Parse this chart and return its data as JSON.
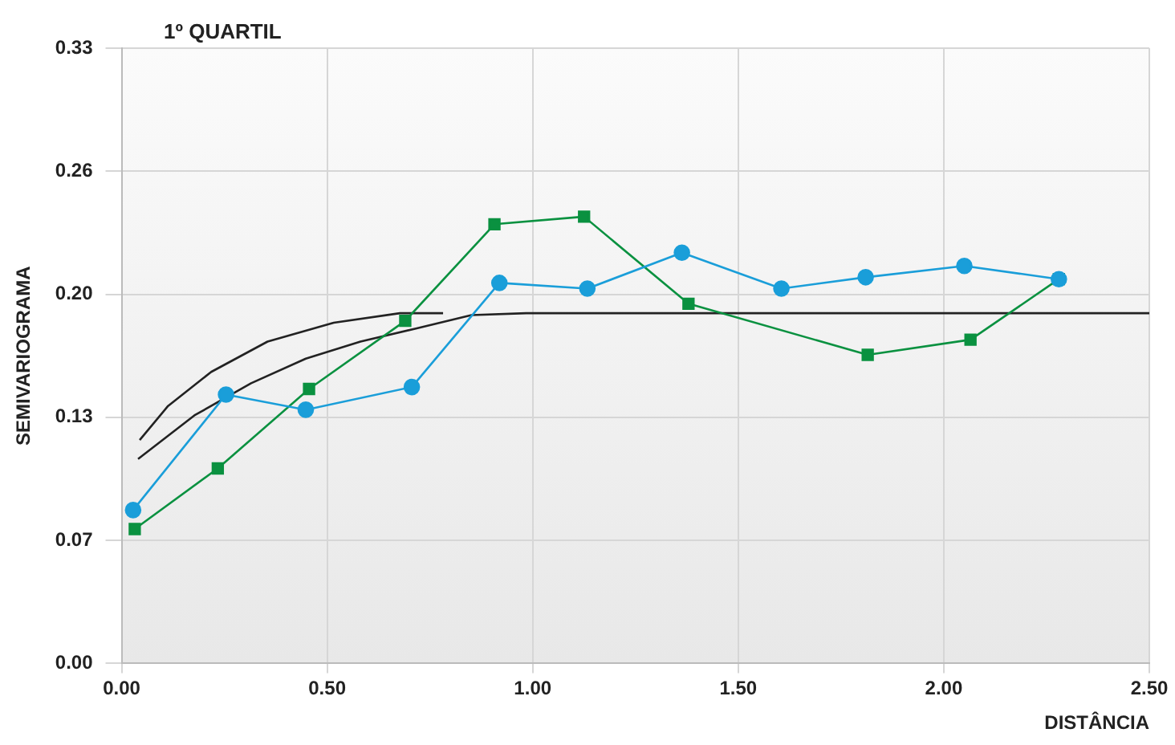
{
  "chart_data": {
    "type": "line",
    "title": "1º QUARTIL",
    "xlabel": "DISTÂNCIA",
    "ylabel": "SEMIVARIOGRAMA",
    "xlim": [
      0,
      2.5
    ],
    "xticks": [
      {
        "value": 0,
        "label": "0.00"
      },
      {
        "value": 0.5,
        "label": "0.50"
      },
      {
        "value": 1,
        "label": "1.00"
      },
      {
        "value": 1.5,
        "label": "1.50"
      },
      {
        "value": 2,
        "label": "2.00"
      },
      {
        "value": 2.5,
        "label": "2.50"
      }
    ],
    "ylim": [
      0,
      0.325
    ],
    "yticks": [
      {
        "value": 0,
        "label": "0.00"
      },
      {
        "value": 0.065,
        "label": "0.07"
      },
      {
        "value": 0.13,
        "label": "0.13"
      },
      {
        "value": 0.195,
        "label": "0.20"
      },
      {
        "value": 0.26,
        "label": "0.26"
      },
      {
        "value": 0.325,
        "label": "0.33"
      }
    ],
    "grid": true,
    "legend": false,
    "line_style": "solid",
    "series": [
      {
        "color": "#1a9ed9",
        "marker": "circle",
        "x": [
          0.028,
          0.254,
          0.448,
          0.706,
          0.919,
          1.133,
          1.363,
          1.605,
          1.81,
          2.05,
          2.28
        ],
        "values": [
          0.081,
          0.142,
          0.134,
          0.146,
          0.201,
          0.198,
          0.217,
          0.198,
          0.204,
          0.21,
          0.203
        ]
      },
      {
        "color": "#0a9140",
        "marker": "square",
        "x": [
          0.032,
          0.234,
          0.456,
          0.69,
          0.907,
          1.125,
          1.379,
          1.815,
          2.065,
          2.28
        ],
        "values": [
          0.071,
          0.103,
          0.145,
          0.181,
          0.232,
          0.236,
          0.19,
          0.163,
          0.171,
          0.203
        ]
      },
      {
        "color": "#222222",
        "marker": "none",
        "x": [
          0.044,
          0.113,
          0.218,
          0.355,
          0.516,
          0.677,
          0.782
        ],
        "values": [
          0.118,
          0.136,
          0.154,
          0.17,
          0.18,
          0.185,
          0.185
        ]
      },
      {
        "color": "#222222",
        "marker": "none",
        "x": [
          0.04,
          0.177,
          0.315,
          0.448,
          0.581,
          0.718,
          0.851,
          0.984,
          2.5
        ],
        "values": [
          0.108,
          0.131,
          0.148,
          0.161,
          0.17,
          0.177,
          0.184,
          0.185,
          0.185
        ]
      }
    ]
  }
}
